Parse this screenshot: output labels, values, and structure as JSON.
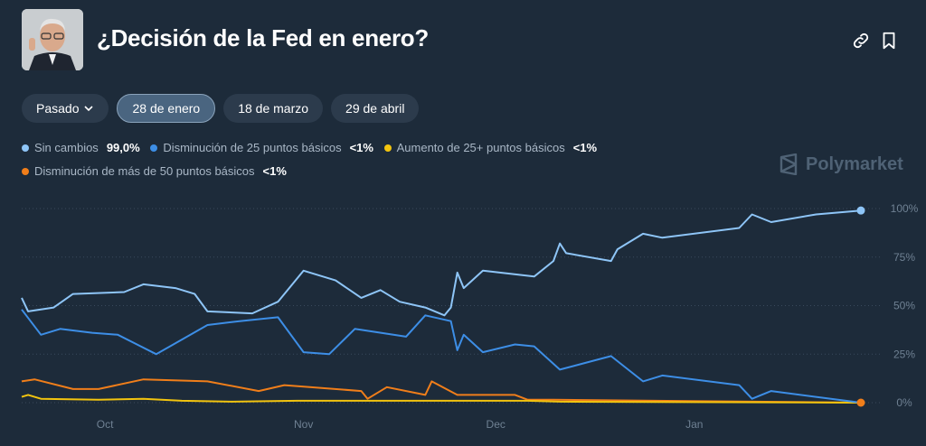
{
  "header": {
    "title": "¿Decisión de la Fed en enero?",
    "avatar_icon": "person-photo",
    "link_icon": "link-icon",
    "bookmark_icon": "bookmark-icon"
  },
  "tabs": [
    {
      "label": "Pasado",
      "dropdown": true
    },
    {
      "label": "28 de enero",
      "active": true
    },
    {
      "label": "18 de marzo"
    },
    {
      "label": "29 de abril"
    }
  ],
  "legend": [
    {
      "label": "Sin cambios",
      "value": "99,0%",
      "color": "#8ec5f7"
    },
    {
      "label": "Disminución de 25 puntos básicos",
      "value": "<1%",
      "color": "#3d8ee6"
    },
    {
      "label": "Aumento de 25+ puntos básicos",
      "value": "<1%",
      "color": "#f2c40f"
    },
    {
      "label": "Disminución de más de 50 puntos básicos",
      "value": "<1%",
      "color": "#f07e1a"
    }
  ],
  "brand": "Polymarket",
  "chart_data": {
    "type": "line",
    "xlim": [
      "2024-09-18",
      "2025-01-27"
    ],
    "ylim": [
      0,
      100
    ],
    "grid": true,
    "y_ticks": [
      "0%",
      "25%",
      "50%",
      "75%",
      "100%"
    ],
    "y_tick_values": [
      0,
      25,
      50,
      75,
      100
    ],
    "x_ticks": [
      "Oct",
      "Nov",
      "Dec",
      "Jan"
    ],
    "x_tick_dates": [
      "2024-10-01",
      "2024-11-01",
      "2024-12-01",
      "2025-01-01"
    ],
    "series": [
      {
        "name": "Sin cambios",
        "color": "#8ec5f7",
        "points": [
          [
            "2024-09-18",
            54
          ],
          [
            "2024-09-19",
            47
          ],
          [
            "2024-09-23",
            49
          ],
          [
            "2024-09-26",
            56
          ],
          [
            "2024-10-04",
            57
          ],
          [
            "2024-10-07",
            61
          ],
          [
            "2024-10-12",
            59
          ],
          [
            "2024-10-15",
            56
          ],
          [
            "2024-10-17",
            47
          ],
          [
            "2024-10-24",
            46
          ],
          [
            "2024-10-28",
            52
          ],
          [
            "2024-11-01",
            68
          ],
          [
            "2024-11-06",
            63
          ],
          [
            "2024-11-10",
            54
          ],
          [
            "2024-11-13",
            58
          ],
          [
            "2024-11-16",
            52
          ],
          [
            "2024-11-20",
            49
          ],
          [
            "2024-11-23",
            45
          ],
          [
            "2024-11-24",
            49
          ],
          [
            "2024-11-25",
            67
          ],
          [
            "2024-11-26",
            59
          ],
          [
            "2024-11-29",
            68
          ],
          [
            "2024-12-07",
            65
          ],
          [
            "2024-12-10",
            73
          ],
          [
            "2024-12-11",
            82
          ],
          [
            "2024-12-12",
            77
          ],
          [
            "2024-12-19",
            73
          ],
          [
            "2024-12-20",
            79
          ],
          [
            "2024-12-24",
            87
          ],
          [
            "2024-12-27",
            85
          ],
          [
            "2025-01-08",
            90
          ],
          [
            "2025-01-10",
            97
          ],
          [
            "2025-01-13",
            93
          ],
          [
            "2025-01-20",
            97
          ],
          [
            "2025-01-27",
            99
          ]
        ]
      },
      {
        "name": "Disminución de 25 puntos básicos",
        "color": "#3d8ee6",
        "points": [
          [
            "2024-09-18",
            48
          ],
          [
            "2024-09-21",
            35
          ],
          [
            "2024-09-24",
            38
          ],
          [
            "2024-09-29",
            36
          ],
          [
            "2024-10-03",
            35
          ],
          [
            "2024-10-09",
            25
          ],
          [
            "2024-10-17",
            40
          ],
          [
            "2024-10-22",
            42
          ],
          [
            "2024-10-28",
            44
          ],
          [
            "2024-11-01",
            26
          ],
          [
            "2024-11-05",
            25
          ],
          [
            "2024-11-09",
            38
          ],
          [
            "2024-11-17",
            34
          ],
          [
            "2024-11-20",
            45
          ],
          [
            "2024-11-24",
            42
          ],
          [
            "2024-11-25",
            27
          ],
          [
            "2024-11-26",
            35
          ],
          [
            "2024-11-29",
            26
          ],
          [
            "2024-12-04",
            30
          ],
          [
            "2024-12-07",
            29
          ],
          [
            "2024-12-11",
            17
          ],
          [
            "2024-12-19",
            24
          ],
          [
            "2024-12-24",
            11
          ],
          [
            "2024-12-27",
            14
          ],
          [
            "2025-01-08",
            9
          ],
          [
            "2025-01-10",
            2
          ],
          [
            "2025-01-13",
            6
          ],
          [
            "2025-01-20",
            3
          ],
          [
            "2025-01-27",
            0
          ]
        ]
      },
      {
        "name": "Aumento de 25+ puntos básicos",
        "color": "#f2c40f",
        "points": [
          [
            "2024-09-18",
            3
          ],
          [
            "2024-09-19",
            4
          ],
          [
            "2024-09-21",
            2
          ],
          [
            "2024-09-30",
            1.5
          ],
          [
            "2024-10-07",
            2
          ],
          [
            "2024-10-13",
            1
          ],
          [
            "2024-10-21",
            0.5
          ],
          [
            "2024-10-31",
            1
          ],
          [
            "2024-11-10",
            1
          ],
          [
            "2024-11-24",
            1
          ],
          [
            "2024-12-06",
            1
          ],
          [
            "2024-12-11",
            0.5
          ],
          [
            "2025-01-27",
            0
          ]
        ]
      },
      {
        "name": "Disminución de más de 50 puntos básicos",
        "color": "#f07e1a",
        "points": [
          [
            "2024-09-18",
            11
          ],
          [
            "2024-09-20",
            12
          ],
          [
            "2024-09-26",
            7
          ],
          [
            "2024-09-30",
            7
          ],
          [
            "2024-10-07",
            12
          ],
          [
            "2024-10-17",
            11
          ],
          [
            "2024-10-25",
            6
          ],
          [
            "2024-10-29",
            9
          ],
          [
            "2024-11-10",
            6
          ],
          [
            "2024-11-11",
            2
          ],
          [
            "2024-11-14",
            8
          ],
          [
            "2024-11-20",
            4
          ],
          [
            "2024-11-21",
            11
          ],
          [
            "2024-11-25",
            4
          ],
          [
            "2024-12-04",
            4
          ],
          [
            "2024-12-06",
            1.5
          ],
          [
            "2024-12-10",
            1.5
          ],
          [
            "2025-01-27",
            0
          ]
        ]
      }
    ]
  }
}
